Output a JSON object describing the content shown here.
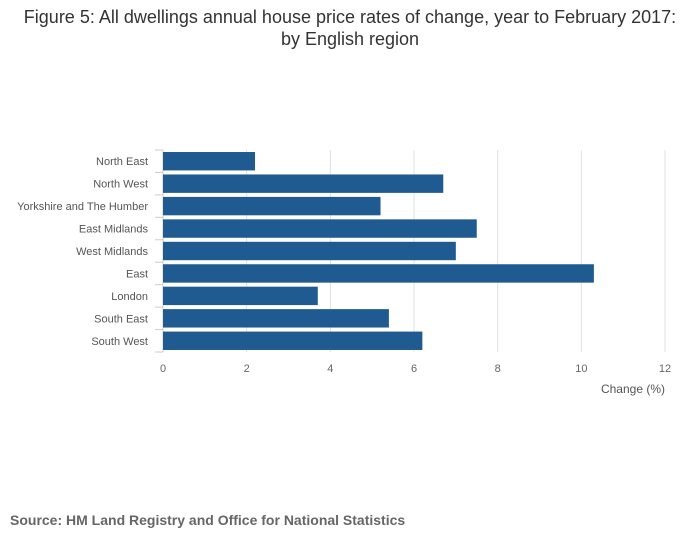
{
  "title": "Figure 5: All dwellings annual house price rates of change, year to February 2017: by English region",
  "source": "Source: HM Land Registry and Office for National Statistics",
  "colors": {
    "bar": "#1f5a91",
    "grid": "#e0e0e0",
    "axis": "#cccccc"
  },
  "chart_data": {
    "type": "bar",
    "orientation": "horizontal",
    "title": "Figure 5: All dwellings annual house price rates of change, year to February 2017: by English region",
    "categories": [
      "North East",
      "North West",
      "Yorkshire and The Humber",
      "East Midlands",
      "West Midlands",
      "East",
      "London",
      "South East",
      "South West"
    ],
    "values": [
      2.2,
      6.7,
      5.2,
      7.5,
      7.0,
      10.3,
      3.7,
      5.4,
      6.2
    ],
    "xlabel": "Change (%)",
    "ylabel": "",
    "xlim": [
      0,
      12
    ],
    "xticks": [
      0,
      2,
      4,
      6,
      8,
      10,
      12
    ],
    "grid": true,
    "legend": "none"
  }
}
